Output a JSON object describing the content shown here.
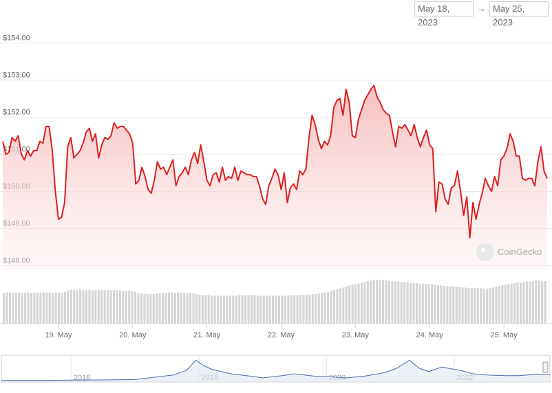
{
  "date_range": {
    "from": "May 18, 2023",
    "arrow": "→",
    "to": "May 25, 2023"
  },
  "watermark": "CoinGecko",
  "navigator": {
    "year_labels": [
      "2016",
      "2018",
      "2020",
      "2022"
    ]
  },
  "colors": {
    "line": "#dd1f1f",
    "area_top": "#f6c6c6",
    "grid": "#e6e6e6",
    "volume": "#d4d4d4",
    "navigator": "#4a6aa8"
  },
  "chart_data": {
    "type": "area",
    "title": "",
    "xlabel": "",
    "ylabel": "",
    "ylim": [
      147.9,
      154.6
    ],
    "grid": true,
    "y_ticks": [
      "$148.00",
      "$149.00",
      "$150.00",
      "$151.00",
      "$152.00",
      "$153.00",
      "$154.00"
    ],
    "x_tick_labels": [
      "19. May",
      "20. May",
      "21. May",
      "22. May",
      "23. May",
      "24. May",
      "25. May"
    ],
    "price": {
      "x_start": "2023-05-18 06:00",
      "x_step_hours": 1,
      "values": [
        151.35,
        151.0,
        151.05,
        151.45,
        151.35,
        151.5,
        151.0,
        150.85,
        151.1,
        150.95,
        151.1,
        151.1,
        151.35,
        151.3,
        151.75,
        151.75,
        151.1,
        150.0,
        149.25,
        149.3,
        149.7,
        151.2,
        151.45,
        150.9,
        151.0,
        151.1,
        151.3,
        151.6,
        151.7,
        151.35,
        151.55,
        150.9,
        151.25,
        151.45,
        151.4,
        151.5,
        151.85,
        151.7,
        151.75,
        151.75,
        151.65,
        151.55,
        151.3,
        150.2,
        150.3,
        150.65,
        150.4,
        150.05,
        149.95,
        150.3,
        150.8,
        150.6,
        150.65,
        150.45,
        150.65,
        150.85,
        150.15,
        150.4,
        150.5,
        150.65,
        150.45,
        150.85,
        151.05,
        150.75,
        151.25,
        150.8,
        150.3,
        150.15,
        150.45,
        150.5,
        150.25,
        150.65,
        150.3,
        150.4,
        150.35,
        150.65,
        150.3,
        150.55,
        150.5,
        150.45,
        150.45,
        150.4,
        150.4,
        150.15,
        149.8,
        149.65,
        150.15,
        150.35,
        150.6,
        150.45,
        150.05,
        150.5,
        149.7,
        150.1,
        150.2,
        150.05,
        150.55,
        150.45,
        150.6,
        151.45,
        152.05,
        151.8,
        151.4,
        151.15,
        151.35,
        151.25,
        151.5,
        152.25,
        152.45,
        152.5,
        152.05,
        152.75,
        152.4,
        151.5,
        151.45,
        151.95,
        152.2,
        152.45,
        152.6,
        152.75,
        152.85,
        152.55,
        152.4,
        152.2,
        152.1,
        152.05,
        151.6,
        151.2,
        151.75,
        151.7,
        151.8,
        151.65,
        151.5,
        151.8,
        151.45,
        151.2,
        151.45,
        151.65,
        151.25,
        151.15,
        149.45,
        150.25,
        150.2,
        149.8,
        149.65,
        150.1,
        150.15,
        150.55,
        150.0,
        149.35,
        149.85,
        148.75,
        149.7,
        149.25,
        149.65,
        149.95,
        150.35,
        150.15,
        150.0,
        150.4,
        150.15,
        150.85,
        150.95,
        151.15,
        151.55,
        151.35,
        150.95,
        150.95,
        150.35,
        150.3,
        150.35,
        150.35,
        150.15,
        150.8,
        151.2,
        150.55,
        150.35
      ]
    },
    "volume": {
      "note_relative": true,
      "values": [
        0.56,
        0.57,
        0.57,
        0.56,
        0.57,
        0.57,
        0.56,
        0.57,
        0.57,
        0.56,
        0.57,
        0.57,
        0.56,
        0.57,
        0.57,
        0.57,
        0.56,
        0.57,
        0.57,
        0.56,
        0.58,
        0.61,
        0.62,
        0.61,
        0.61,
        0.62,
        0.61,
        0.61,
        0.62,
        0.61,
        0.61,
        0.62,
        0.61,
        0.61,
        0.61,
        0.61,
        0.61,
        0.61,
        0.61,
        0.6,
        0.6,
        0.6,
        0.59,
        0.58,
        0.56,
        0.55,
        0.55,
        0.54,
        0.54,
        0.54,
        0.55,
        0.56,
        0.56,
        0.56,
        0.57,
        0.57,
        0.56,
        0.57,
        0.57,
        0.56,
        0.56,
        0.56,
        0.55,
        0.54,
        0.53,
        0.52,
        0.52,
        0.52,
        0.51,
        0.51,
        0.51,
        0.51,
        0.51,
        0.51,
        0.51,
        0.51,
        0.51,
        0.52,
        0.52,
        0.52,
        0.52,
        0.52,
        0.52,
        0.51,
        0.51,
        0.51,
        0.51,
        0.51,
        0.51,
        0.51,
        0.51,
        0.51,
        0.51,
        0.51,
        0.52,
        0.52,
        0.52,
        0.52,
        0.53,
        0.53,
        0.53,
        0.54,
        0.54,
        0.55,
        0.56,
        0.57,
        0.58,
        0.6,
        0.62,
        0.63,
        0.65,
        0.66,
        0.68,
        0.7,
        0.71,
        0.72,
        0.73,
        0.74,
        0.76,
        0.78,
        0.79,
        0.8,
        0.8,
        0.79,
        0.8,
        0.79,
        0.78,
        0.77,
        0.77,
        0.77,
        0.76,
        0.76,
        0.75,
        0.74,
        0.74,
        0.74,
        0.73,
        0.73,
        0.72,
        0.72,
        0.72,
        0.71,
        0.7,
        0.7,
        0.69,
        0.69,
        0.68,
        0.68,
        0.67,
        0.67,
        0.66,
        0.66,
        0.65,
        0.65,
        0.65,
        0.65,
        0.65,
        0.64,
        0.64,
        0.65,
        0.66,
        0.67,
        0.69,
        0.7,
        0.71,
        0.72,
        0.73,
        0.74,
        0.75,
        0.75,
        0.76,
        0.77,
        0.77,
        0.78,
        0.79,
        0.79,
        0.78,
        0.78
      ]
    },
    "navigator": {
      "start_year": 2014.9,
      "end_year": 2023.5,
      "values": [
        [
          2014.9,
          0.01
        ],
        [
          2015.5,
          0.01
        ],
        [
          2016.0,
          0.02
        ],
        [
          2016.5,
          0.03
        ],
        [
          2017.0,
          0.05
        ],
        [
          2017.3,
          0.15
        ],
        [
          2017.6,
          0.25
        ],
        [
          2017.8,
          0.45
        ],
        [
          2017.95,
          0.9
        ],
        [
          2018.05,
          0.7
        ],
        [
          2018.2,
          0.5
        ],
        [
          2018.5,
          0.3
        ],
        [
          2018.8,
          0.2
        ],
        [
          2019.0,
          0.12
        ],
        [
          2019.3,
          0.22
        ],
        [
          2019.5,
          0.3
        ],
        [
          2019.8,
          0.2
        ],
        [
          2020.0,
          0.18
        ],
        [
          2020.3,
          0.12
        ],
        [
          2020.6,
          0.2
        ],
        [
          2020.9,
          0.35
        ],
        [
          2021.1,
          0.55
        ],
        [
          2021.3,
          0.9
        ],
        [
          2021.45,
          0.55
        ],
        [
          2021.6,
          0.4
        ],
        [
          2021.8,
          0.6
        ],
        [
          2021.9,
          0.55
        ],
        [
          2022.1,
          0.45
        ],
        [
          2022.3,
          0.3
        ],
        [
          2022.5,
          0.25
        ],
        [
          2022.8,
          0.22
        ],
        [
          2023.0,
          0.22
        ],
        [
          2023.3,
          0.28
        ],
        [
          2023.5,
          0.27
        ]
      ]
    }
  }
}
